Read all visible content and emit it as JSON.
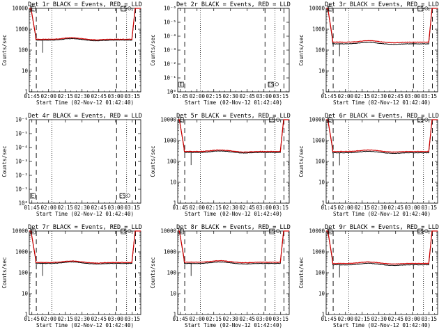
{
  "chart_data": [
    {
      "title": "Det 1r BLACK = Events, RED = LLD",
      "type": "line",
      "xlabel": "Start Time (02-Nov-12 01:42:40)",
      "ylabel": "Counts/sec",
      "x_ticks": [
        "01:45",
        "02:00",
        "02:15",
        "02:30",
        "02:45",
        "03:00",
        "03:15"
      ],
      "y_ticks": [
        "1",
        "10",
        "100",
        "1000",
        "10000"
      ],
      "xlim_minutes": [
        0,
        100
      ],
      "ylim_log10": [
        0,
        4
      ],
      "has_data": true,
      "events_level": 300,
      "lld_level": 330,
      "dotted_lines_minutes": [
        20.3,
        87.3
      ],
      "dashed_lines_minutes": [
        6.3,
        78.3,
        95.3
      ],
      "series": [
        {
          "name": "Events",
          "color": "#000000"
        },
        {
          "name": "LLD",
          "color": "#d40000"
        }
      ],
      "markers": [
        "E",
        "S"
      ]
    },
    {
      "title": "Det 2r BLACK = Events, RED = LLD",
      "type": "line",
      "xlabel": "Start Time (02-Nov-12 01:42:40)",
      "ylabel": "Counts/sec",
      "x_ticks": [
        "01:45",
        "02:00",
        "02:15",
        "02:30",
        "02:45",
        "03:00",
        "03:15"
      ],
      "y_ticks": [
        "10⁰",
        "10⁻¹",
        "10⁻²",
        "10⁻³",
        "10⁻⁴",
        "10⁻⁵",
        "10⁻⁶"
      ],
      "xlim_minutes": [
        0,
        100
      ],
      "has_data": false,
      "dotted_lines_minutes": [
        20.3,
        87.3
      ],
      "dashed_lines_minutes": [
        6.3,
        78.3,
        95.3
      ],
      "series": [
        {
          "name": "Events",
          "color": "#000000"
        },
        {
          "name": "LLD",
          "color": "#d40000"
        }
      ],
      "markers": [
        "E",
        "S"
      ]
    },
    {
      "title": "Det 3r BLACK = Events, RED = LLD",
      "type": "line",
      "xlabel": "Start Time (02-Nov-12 01:42:40)",
      "ylabel": "Counts/sec",
      "x_ticks": [
        "01:45",
        "02:00",
        "02:15",
        "02:30",
        "02:45",
        "03:00",
        "03:15"
      ],
      "y_ticks": [
        "1",
        "10",
        "100",
        "1000",
        "10000"
      ],
      "xlim_minutes": [
        0,
        100
      ],
      "ylim_log10": [
        0,
        4
      ],
      "has_data": true,
      "events_level": 200,
      "lld_level": 240,
      "dotted_lines_minutes": [
        20.3,
        87.3
      ],
      "dashed_lines_minutes": [
        6.3,
        78.3,
        95.3
      ],
      "series": [
        {
          "name": "Events",
          "color": "#000000"
        },
        {
          "name": "LLD",
          "color": "#d40000"
        }
      ],
      "markers": [
        "E",
        "S"
      ]
    },
    {
      "title": "Det 4r BLACK = Events, RED = LLD",
      "type": "line",
      "xlabel": "Start Time (02-Nov-12 01:42:40)",
      "ylabel": "Counts/sec",
      "x_ticks": [
        "01:45",
        "02:00",
        "02:15",
        "02:30",
        "02:45",
        "03:00",
        "03:15"
      ],
      "y_ticks": [
        "10⁰",
        "10⁻¹",
        "10⁻²",
        "10⁻³",
        "10⁻⁴",
        "10⁻⁵",
        "10⁻⁶"
      ],
      "xlim_minutes": [
        0,
        100
      ],
      "has_data": false,
      "dotted_lines_minutes": [
        20.3,
        87.3
      ],
      "dashed_lines_minutes": [
        6.3,
        78.3,
        95.3
      ],
      "series": [
        {
          "name": "Events",
          "color": "#000000"
        },
        {
          "name": "LLD",
          "color": "#d40000"
        }
      ],
      "markers": [
        "E",
        "S"
      ]
    },
    {
      "title": "Det 5r BLACK = Events, RED = LLD",
      "type": "line",
      "xlabel": "Start Time (02-Nov-12 01:42:40)",
      "ylabel": "Counts/sec",
      "x_ticks": [
        "01:45",
        "02:00",
        "02:15",
        "02:30",
        "02:45",
        "03:00",
        "03:15"
      ],
      "y_ticks": [
        "1",
        "10",
        "100",
        "1000",
        "10000"
      ],
      "xlim_minutes": [
        0,
        100
      ],
      "ylim_log10": [
        0,
        4
      ],
      "has_data": true,
      "events_level": 270,
      "lld_level": 300,
      "dotted_lines_minutes": [
        20.3,
        87.3
      ],
      "dashed_lines_minutes": [
        6.3,
        78.3,
        95.3
      ],
      "series": [
        {
          "name": "Events",
          "color": "#000000"
        },
        {
          "name": "LLD",
          "color": "#d40000"
        }
      ],
      "markers": [
        "E",
        "S"
      ]
    },
    {
      "title": "Det 6r BLACK = Events, RED = LLD",
      "type": "line",
      "xlabel": "Start Time (02-Nov-12 01:42:40)",
      "ylabel": "Counts/sec",
      "x_ticks": [
        "01:45",
        "02:00",
        "02:15",
        "02:30",
        "02:45",
        "03:00",
        "03:15"
      ],
      "y_ticks": [
        "1",
        "10",
        "100",
        "1000",
        "10000"
      ],
      "xlim_minutes": [
        0,
        100
      ],
      "ylim_log10": [
        0,
        4
      ],
      "has_data": true,
      "events_level": 260,
      "lld_level": 300,
      "dotted_lines_minutes": [
        20.3,
        87.3
      ],
      "dashed_lines_minutes": [
        6.3,
        78.3,
        95.3
      ],
      "series": [
        {
          "name": "Events",
          "color": "#000000"
        },
        {
          "name": "LLD",
          "color": "#d40000"
        }
      ],
      "markers": [
        "E",
        "S"
      ]
    },
    {
      "title": "Det 7r BLACK = Events, RED = LLD",
      "type": "line",
      "xlabel": "Start Time (02-Nov-12 01:42:40)",
      "ylabel": "Counts/sec",
      "x_ticks": [
        "01:45",
        "02:00",
        "02:15",
        "02:30",
        "02:45",
        "03:00",
        "03:15"
      ],
      "y_ticks": [
        "1",
        "10",
        "100",
        "1000",
        "10000"
      ],
      "xlim_minutes": [
        0,
        100
      ],
      "ylim_log10": [
        0,
        4
      ],
      "has_data": true,
      "events_level": 280,
      "lld_level": 310,
      "dotted_lines_minutes": [
        20.3,
        87.3
      ],
      "dashed_lines_minutes": [
        6.3,
        78.3,
        95.3
      ],
      "series": [
        {
          "name": "Events",
          "color": "#000000"
        },
        {
          "name": "LLD",
          "color": "#d40000"
        }
      ],
      "markers": [
        "E",
        "S"
      ]
    },
    {
      "title": "Det 8r BLACK = Events, RED = LLD",
      "type": "line",
      "xlabel": "Start Time (02-Nov-12 01:42:40)",
      "ylabel": "Counts/sec",
      "x_ticks": [
        "01:45",
        "02:00",
        "02:15",
        "02:30",
        "02:45",
        "03:00",
        "03:15"
      ],
      "y_ticks": [
        "1",
        "10",
        "100",
        "1000",
        "10000"
      ],
      "xlim_minutes": [
        0,
        100
      ],
      "ylim_log10": [
        0,
        4
      ],
      "has_data": true,
      "events_level": 280,
      "lld_level": 320,
      "dotted_lines_minutes": [
        20.3,
        87.3
      ],
      "dashed_lines_minutes": [
        6.3,
        78.3,
        95.3
      ],
      "series": [
        {
          "name": "Events",
          "color": "#000000"
        },
        {
          "name": "LLD",
          "color": "#d40000"
        }
      ],
      "markers": [
        "E",
        "S"
      ]
    },
    {
      "title": "Det 9r BLACK = Events, RED = LLD",
      "type": "line",
      "xlabel": "Start Time (02-Nov-12 01:42:40)",
      "ylabel": "Counts/sec",
      "x_ticks": [
        "01:45",
        "02:00",
        "02:15",
        "02:30",
        "02:45",
        "03:00",
        "03:15"
      ],
      "y_ticks": [
        "1",
        "10",
        "100",
        "1000",
        "10000"
      ],
      "xlim_minutes": [
        0,
        100
      ],
      "ylim_log10": [
        0,
        4
      ],
      "has_data": true,
      "events_level": 240,
      "lld_level": 280,
      "dotted_lines_minutes": [
        20.3,
        87.3
      ],
      "dashed_lines_minutes": [
        6.3,
        78.3,
        95.3
      ],
      "series": [
        {
          "name": "Events",
          "color": "#000000"
        },
        {
          "name": "LLD",
          "color": "#d40000"
        }
      ],
      "markers": [
        "E",
        "S"
      ]
    }
  ]
}
